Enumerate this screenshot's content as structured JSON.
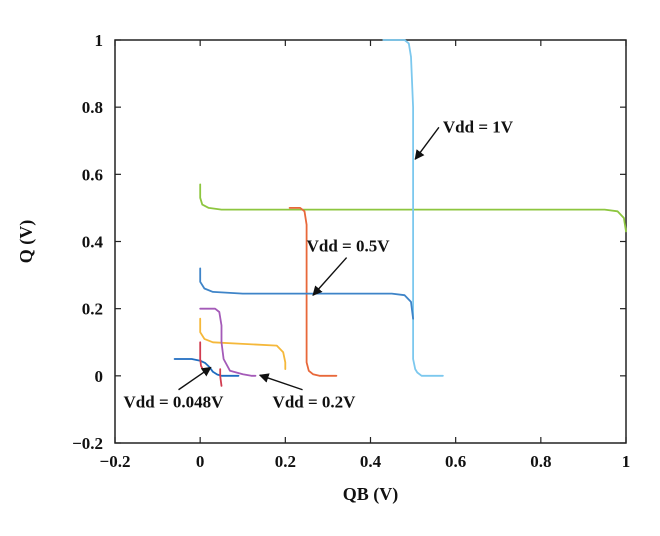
{
  "chart_data": {
    "type": "line",
    "title": "",
    "xlabel": "QB (V)",
    "ylabel": "Q (V)",
    "xlim": [
      -0.2,
      1
    ],
    "ylim": [
      -0.2,
      1
    ],
    "x_ticks": [
      -0.2,
      0,
      0.2,
      0.4,
      0.6,
      0.8,
      1
    ],
    "y_ticks": [
      -0.2,
      0,
      0.2,
      0.4,
      0.6,
      0.8,
      1
    ],
    "x_tick_labels": [
      "−0.2",
      "0",
      "0.2",
      "0.4",
      "0.6",
      "0.8",
      "1"
    ],
    "y_tick_labels": [
      "−0.2",
      "0",
      "0.2",
      "0.4",
      "0.6",
      "0.8",
      "1"
    ],
    "grid": false,
    "legend": "none",
    "series": [
      {
        "color": "#8dc63f",
        "x": [
          0.0,
          0.0,
          0.005,
          0.02,
          0.05,
          0.1,
          0.5,
          0.95,
          0.98,
          0.995,
          1.0
        ],
        "y": [
          0.57,
          0.53,
          0.51,
          0.5,
          0.495,
          0.495,
          0.495,
          0.495,
          0.49,
          0.47,
          0.43
        ]
      },
      {
        "color": "#7cc8ee",
        "x": [
          0.43,
          0.48,
          0.49,
          0.495,
          0.5,
          0.5,
          0.5,
          0.5,
          0.5,
          0.505,
          0.51,
          0.52,
          0.57
        ],
        "y": [
          1.0,
          1.0,
          0.99,
          0.95,
          0.8,
          0.6,
          0.4,
          0.2,
          0.05,
          0.02,
          0.01,
          0.0,
          0.0
        ]
      },
      {
        "color": "#e8683a",
        "x": [
          0.21,
          0.235,
          0.245,
          0.25,
          0.25,
          0.25,
          0.25,
          0.255,
          0.265,
          0.28,
          0.32
        ],
        "y": [
          0.5,
          0.5,
          0.49,
          0.45,
          0.3,
          0.15,
          0.04,
          0.015,
          0.005,
          0.0,
          0.0
        ]
      },
      {
        "color": "#3e84c8",
        "x": [
          0.0,
          0.0,
          0.01,
          0.03,
          0.1,
          0.45,
          0.48,
          0.495,
          0.5
        ],
        "y": [
          0.32,
          0.28,
          0.26,
          0.25,
          0.245,
          0.245,
          0.24,
          0.22,
          0.17
        ]
      },
      {
        "color": "#f5b83a",
        "x": [
          0.0,
          0.0,
          0.01,
          0.03,
          0.1,
          0.18,
          0.195,
          0.2,
          0.2
        ],
        "y": [
          0.17,
          0.13,
          0.11,
          0.1,
          0.095,
          0.09,
          0.07,
          0.04,
          0.02
        ]
      },
      {
        "color": "#a45ab8",
        "x": [
          0.0,
          0.035,
          0.045,
          0.05,
          0.05,
          0.055,
          0.07,
          0.1,
          0.12,
          0.13
        ],
        "y": [
          0.2,
          0.2,
          0.19,
          0.15,
          0.1,
          0.05,
          0.015,
          0.005,
          0.0,
          0.0
        ]
      },
      {
        "color": "#1e6cc0",
        "x": [
          -0.06,
          -0.02,
          0.0,
          0.012,
          0.022,
          0.03,
          0.04,
          0.05,
          0.07,
          0.09
        ],
        "y": [
          0.05,
          0.05,
          0.045,
          0.038,
          0.026,
          0.012,
          0.004,
          0.0,
          0.0,
          0.0
        ]
      },
      {
        "color": "#d13c50",
        "x": [
          0.0,
          0.0,
          0.0,
          0.002,
          0.006
        ],
        "y": [
          0.1,
          0.08,
          0.05,
          0.03,
          0.02
        ]
      },
      {
        "color": "#d13c50",
        "x": [
          0.047,
          0.047,
          0.048,
          0.05
        ],
        "y": [
          0.02,
          0.0,
          -0.01,
          -0.03
        ]
      }
    ],
    "annotations": [
      {
        "text": "Vdd = 1V",
        "x": 0.57,
        "y": 0.725,
        "arrow_to": [
          0.505,
          0.645
        ],
        "align": "start"
      },
      {
        "text": "Vdd = 0.5V",
        "x": 0.25,
        "y": 0.37,
        "arrow_to": [
          0.265,
          0.24
        ],
        "align": "start"
      },
      {
        "text": "Vdd = 0.048V",
        "x": -0.18,
        "y": -0.095,
        "arrow_to": [
          0.025,
          0.025
        ],
        "align": "start"
      },
      {
        "text": "Vdd = 0.2V",
        "x": 0.17,
        "y": -0.095,
        "arrow_to": [
          0.14,
          0.002
        ],
        "align": "start"
      }
    ]
  }
}
